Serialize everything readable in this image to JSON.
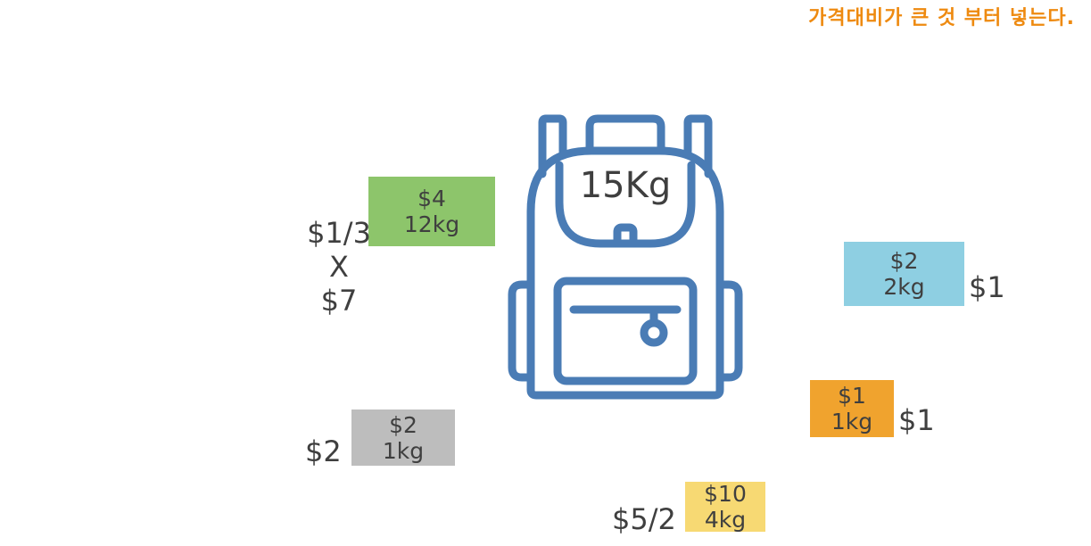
{
  "note": "가격대비가 큰 것 부터 넣는다.",
  "backpack": {
    "capacity": "15Kg"
  },
  "items": [
    {
      "id": "green",
      "price": "$4",
      "weight": "12kg",
      "color": "#8dc56b"
    },
    {
      "id": "blue",
      "price": "$2",
      "weight": "2kg",
      "color": "#8ecfe2"
    },
    {
      "id": "orange",
      "price": "$1",
      "weight": "1kg",
      "color": "#f0a32e"
    },
    {
      "id": "gray",
      "price": "$2",
      "weight": "1kg",
      "color": "#bdbdbd"
    },
    {
      "id": "yellow",
      "price": "$10",
      "weight": "4kg",
      "color": "#f7d973"
    }
  ],
  "labels": {
    "green_ratio": "$1/3",
    "green_x": "X",
    "green_total": "$7",
    "blue_ratio": "$1",
    "orange_ratio": "$1",
    "gray_ratio": "$2",
    "yellow_ratio": "$5/2"
  }
}
